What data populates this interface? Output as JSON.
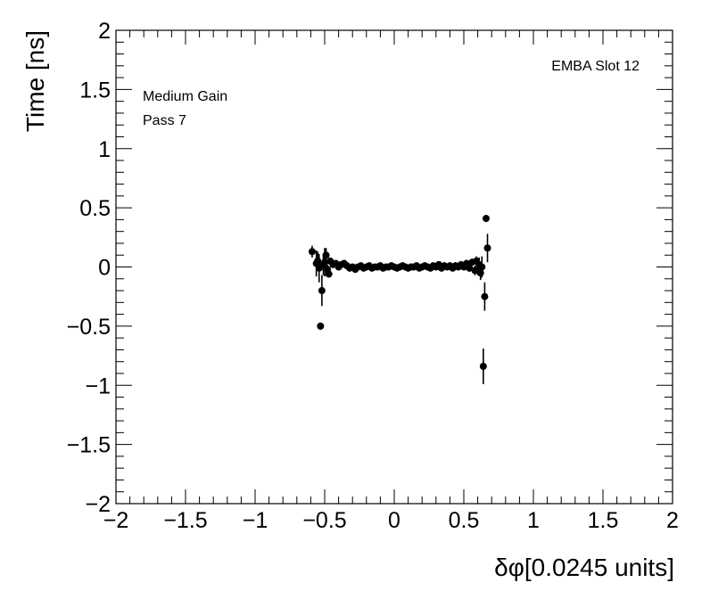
{
  "chart_data": {
    "type": "scatter",
    "title": "",
    "xlabel": "δφ[0.0245 units]",
    "ylabel": "Time [ns]",
    "xlim": [
      -2,
      2
    ],
    "ylim": [
      -2,
      2
    ],
    "xticks": [
      -2,
      -1.5,
      -1,
      -0.5,
      0,
      0.5,
      1,
      1.5,
      2
    ],
    "yticks": [
      -2,
      -1.5,
      -1,
      -0.5,
      0,
      0.5,
      1,
      1.5,
      2
    ],
    "xtick_labels": [
      "−2",
      "−1.5",
      "−1",
      "−0.5",
      "0",
      "0.5",
      "1",
      "1.5",
      "2"
    ],
    "ytick_labels": [
      "−2",
      "−1.5",
      "−1",
      "−0.5",
      "0",
      "0.5",
      "1",
      "1.5",
      "2"
    ],
    "grid": false,
    "annotations": {
      "top_right": "EMBA Slot 12",
      "line1": "Medium Gain",
      "line2": "Pass 7"
    },
    "points": [
      {
        "x": -0.59,
        "y": 0.13,
        "err": 0.05
      },
      {
        "x": -0.56,
        "y": 0.03,
        "err": 0.11
      },
      {
        "x": -0.55,
        "y": 0.05,
        "err": 0.08
      },
      {
        "x": -0.54,
        "y": -0.01,
        "err": 0.12
      },
      {
        "x": -0.53,
        "y": -0.5,
        "err": 0.03
      },
      {
        "x": -0.52,
        "y": -0.2,
        "err": 0.13
      },
      {
        "x": -0.51,
        "y": 0.02,
        "err": 0.09
      },
      {
        "x": -0.5,
        "y": 0.04,
        "err": 0.12
      },
      {
        "x": -0.49,
        "y": 0.1,
        "err": 0.06
      },
      {
        "x": -0.48,
        "y": -0.02,
        "err": 0.04
      },
      {
        "x": -0.47,
        "y": -0.06,
        "err": 0.03
      },
      {
        "x": -0.46,
        "y": 0.05,
        "err": 0.03
      },
      {
        "x": -0.44,
        "y": 0.02,
        "err": 0.02
      },
      {
        "x": -0.42,
        "y": 0.03,
        "err": 0.02
      },
      {
        "x": -0.4,
        "y": 0.0,
        "err": 0.015
      },
      {
        "x": -0.38,
        "y": 0.02,
        "err": 0.015
      },
      {
        "x": -0.36,
        "y": 0.03,
        "err": 0.015
      },
      {
        "x": -0.34,
        "y": 0.01,
        "err": 0.01
      },
      {
        "x": -0.32,
        "y": -0.01,
        "err": 0.01
      },
      {
        "x": -0.3,
        "y": 0.0,
        "err": 0.01
      },
      {
        "x": -0.28,
        "y": -0.02,
        "err": 0.01
      },
      {
        "x": -0.26,
        "y": 0.0,
        "err": 0.01
      },
      {
        "x": -0.24,
        "y": 0.01,
        "err": 0.01
      },
      {
        "x": -0.22,
        "y": -0.01,
        "err": 0.01
      },
      {
        "x": -0.2,
        "y": 0.0,
        "err": 0.01
      },
      {
        "x": -0.18,
        "y": 0.01,
        "err": 0.01
      },
      {
        "x": -0.16,
        "y": -0.01,
        "err": 0.01
      },
      {
        "x": -0.14,
        "y": 0.0,
        "err": 0.01
      },
      {
        "x": -0.12,
        "y": 0.0,
        "err": 0.01
      },
      {
        "x": -0.1,
        "y": 0.01,
        "err": 0.01
      },
      {
        "x": -0.08,
        "y": -0.01,
        "err": 0.01
      },
      {
        "x": -0.06,
        "y": 0.0,
        "err": 0.01
      },
      {
        "x": -0.04,
        "y": 0.0,
        "err": 0.01
      },
      {
        "x": -0.02,
        "y": 0.01,
        "err": 0.01
      },
      {
        "x": 0.0,
        "y": 0.0,
        "err": 0.01
      },
      {
        "x": 0.02,
        "y": -0.01,
        "err": 0.01
      },
      {
        "x": 0.04,
        "y": 0.0,
        "err": 0.01
      },
      {
        "x": 0.06,
        "y": 0.01,
        "err": 0.01
      },
      {
        "x": 0.08,
        "y": 0.0,
        "err": 0.01
      },
      {
        "x": 0.1,
        "y": -0.01,
        "err": 0.01
      },
      {
        "x": 0.12,
        "y": 0.0,
        "err": 0.01
      },
      {
        "x": 0.14,
        "y": 0.0,
        "err": 0.01
      },
      {
        "x": 0.16,
        "y": 0.01,
        "err": 0.01
      },
      {
        "x": 0.18,
        "y": -0.01,
        "err": 0.01
      },
      {
        "x": 0.2,
        "y": 0.0,
        "err": 0.01
      },
      {
        "x": 0.22,
        "y": 0.01,
        "err": 0.01
      },
      {
        "x": 0.24,
        "y": 0.0,
        "err": 0.01
      },
      {
        "x": 0.26,
        "y": -0.01,
        "err": 0.01
      },
      {
        "x": 0.28,
        "y": 0.01,
        "err": 0.015
      },
      {
        "x": 0.3,
        "y": 0.0,
        "err": 0.015
      },
      {
        "x": 0.32,
        "y": 0.02,
        "err": 0.015
      },
      {
        "x": 0.34,
        "y": -0.01,
        "err": 0.015
      },
      {
        "x": 0.36,
        "y": 0.01,
        "err": 0.015
      },
      {
        "x": 0.38,
        "y": 0.0,
        "err": 0.015
      },
      {
        "x": 0.4,
        "y": 0.01,
        "err": 0.015
      },
      {
        "x": 0.42,
        "y": -0.01,
        "err": 0.015
      },
      {
        "x": 0.44,
        "y": 0.01,
        "err": 0.02
      },
      {
        "x": 0.46,
        "y": 0.0,
        "err": 0.02
      },
      {
        "x": 0.48,
        "y": 0.02,
        "err": 0.02
      },
      {
        "x": 0.5,
        "y": 0.0,
        "err": 0.03
      },
      {
        "x": 0.52,
        "y": 0.03,
        "err": 0.03
      },
      {
        "x": 0.54,
        "y": -0.01,
        "err": 0.03
      },
      {
        "x": 0.56,
        "y": 0.04,
        "err": 0.03
      },
      {
        "x": 0.58,
        "y": -0.03,
        "err": 0.04
      },
      {
        "x": 0.59,
        "y": 0.05,
        "err": 0.04
      },
      {
        "x": 0.6,
        "y": -0.02,
        "err": 0.05
      },
      {
        "x": 0.61,
        "y": 0.02,
        "err": 0.06
      },
      {
        "x": 0.62,
        "y": -0.05,
        "err": 0.06
      },
      {
        "x": 0.63,
        "y": 0.0,
        "err": 0.09
      },
      {
        "x": 0.64,
        "y": -0.84,
        "err": 0.15
      },
      {
        "x": 0.65,
        "y": -0.25,
        "err": 0.12
      },
      {
        "x": 0.66,
        "y": 0.41,
        "err": 0.03
      },
      {
        "x": 0.67,
        "y": 0.16,
        "err": 0.12
      }
    ]
  }
}
